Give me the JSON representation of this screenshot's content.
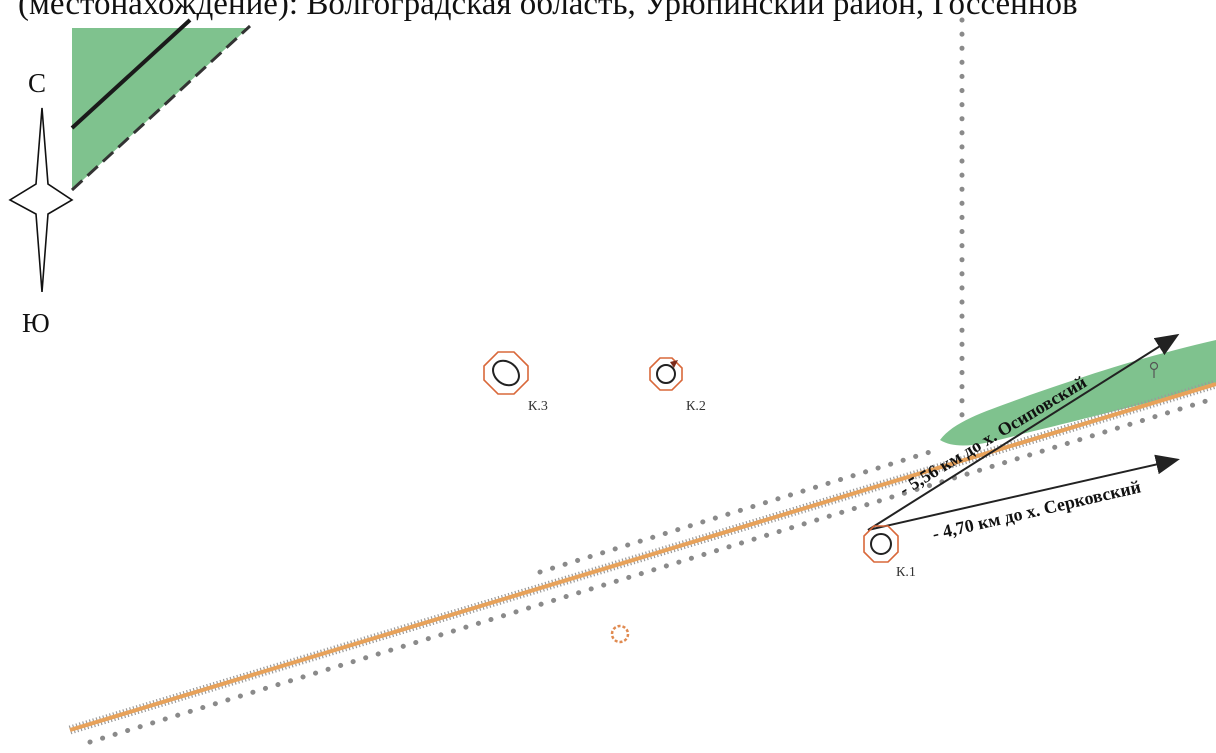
{
  "header": {
    "text": "(местонахождение): Волгоградская область, Урюпинский район, Госсеннов"
  },
  "compass": {
    "north_label": "С",
    "south_label": "Ю"
  },
  "markers": [
    {
      "id": "k1",
      "label": "К.1"
    },
    {
      "id": "k2",
      "label": "К.2"
    },
    {
      "id": "k3",
      "label": "К.3"
    }
  ],
  "distances": [
    {
      "id": "osipovsky",
      "label": "- 5,56 км до х. Осиповский"
    },
    {
      "id": "serkovsky",
      "label": "- 4,70 км до х. Серковский"
    }
  ],
  "colors": {
    "road": "#e8a25a",
    "vegetation": "#7fc28e",
    "marker_ring": "#d9683a",
    "dots": "#8a8a8a"
  }
}
